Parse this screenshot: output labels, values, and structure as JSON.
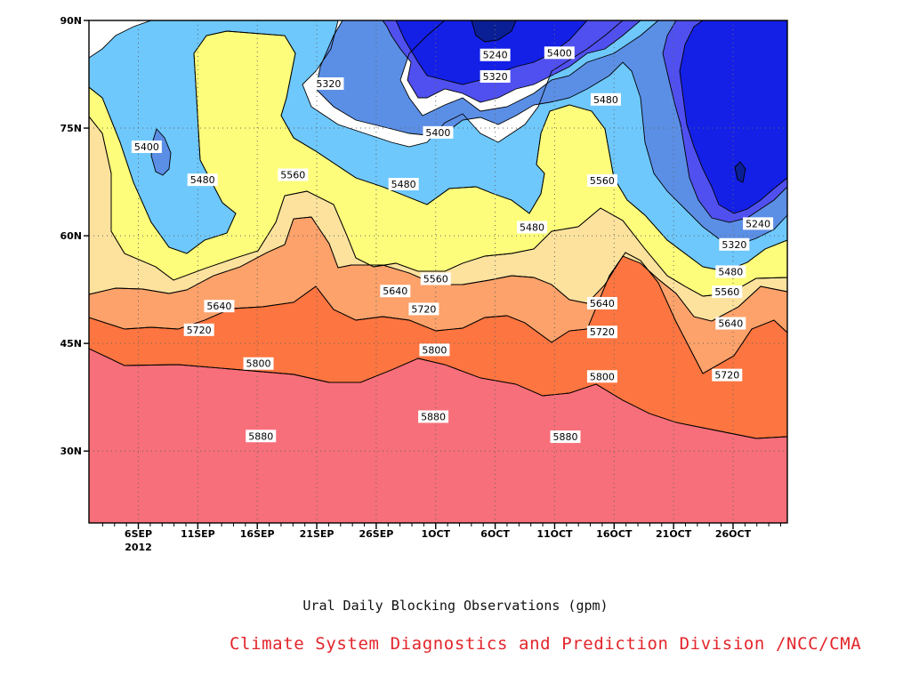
{
  "chart_data": {
    "type": "contour",
    "title": "Ural Daily Blocking Observations (gpm)",
    "credit": "Climate System Diagnostics and Prediction Division /NCC/CMA",
    "x_ticks": [
      "6SEP",
      "11SEP",
      "16SEP",
      "21SEP",
      "26SEP",
      "1OCT",
      "6OCT",
      "11OCT",
      "16OCT",
      "21OCT",
      "26OCT"
    ],
    "x_sub_label": "2012",
    "y_ticks": [
      "30N",
      "45N",
      "60N",
      "75N",
      "90N"
    ],
    "ylim_deg": [
      20,
      90
    ],
    "contour_levels": [
      5160,
      5240,
      5320,
      5400,
      5480,
      5560,
      5640,
      5720,
      5800,
      5880
    ],
    "contour_labels": [
      {
        "text": "5400",
        "day": 6.7,
        "lat": 72.4
      },
      {
        "text": "5480",
        "day": 11.4,
        "lat": 67.8
      },
      {
        "text": "5560",
        "day": 19.0,
        "lat": 68.5
      },
      {
        "text": "5320",
        "day": 22.0,
        "lat": 81.2
      },
      {
        "text": "5480",
        "day": 28.3,
        "lat": 67.2
      },
      {
        "text": "5400",
        "day": 31.2,
        "lat": 74.4
      },
      {
        "text": "5240",
        "day": 36.0,
        "lat": 85.2
      },
      {
        "text": "5320",
        "day": 36.0,
        "lat": 82.2
      },
      {
        "text": "5400",
        "day": 41.4,
        "lat": 85.5
      },
      {
        "text": "5480",
        "day": 39.1,
        "lat": 61.2
      },
      {
        "text": "5480",
        "day": 45.3,
        "lat": 79.0
      },
      {
        "text": "5560",
        "day": 45.0,
        "lat": 67.7
      },
      {
        "text": "5640",
        "day": 27.6,
        "lat": 52.3
      },
      {
        "text": "5560",
        "day": 31.0,
        "lat": 54.0
      },
      {
        "text": "5640",
        "day": 12.8,
        "lat": 50.2
      },
      {
        "text": "5720",
        "day": 30.0,
        "lat": 49.8
      },
      {
        "text": "5640",
        "day": 45.0,
        "lat": 50.6
      },
      {
        "text": "5720",
        "day": 45.0,
        "lat": 46.6
      },
      {
        "text": "5720",
        "day": 11.1,
        "lat": 46.9
      },
      {
        "text": "5800",
        "day": 16.1,
        "lat": 42.2
      },
      {
        "text": "5800",
        "day": 30.9,
        "lat": 44.1
      },
      {
        "text": "5800",
        "day": 45.0,
        "lat": 40.4
      },
      {
        "text": "5880",
        "day": 16.3,
        "lat": 32.1
      },
      {
        "text": "5880",
        "day": 30.8,
        "lat": 34.8
      },
      {
        "text": "5880",
        "day": 41.9,
        "lat": 32.0
      },
      {
        "text": "5240",
        "day": 58.1,
        "lat": 61.7
      },
      {
        "text": "5320",
        "day": 56.1,
        "lat": 58.8
      },
      {
        "text": "5480",
        "day": 55.8,
        "lat": 55.0
      },
      {
        "text": "5560",
        "day": 55.5,
        "lat": 52.2
      },
      {
        "text": "5640",
        "day": 55.8,
        "lat": 47.8
      },
      {
        "text": "5720",
        "day": 55.5,
        "lat": 40.6
      }
    ],
    "colors": {
      "band_5160": "#0a1f96",
      "band_5240": "#1420e6",
      "band_5320": "#5050f0",
      "band_5400": "#5b8fe6",
      "band_5480": "#6ec8fc",
      "band_5560": "#fdfd7b",
      "band_5640": "#fde29e",
      "band_5720": "#fca26a",
      "band_5800": "#fd7540",
      "band_5880": "#f76f7a",
      "band_above": "#f23448"
    }
  }
}
